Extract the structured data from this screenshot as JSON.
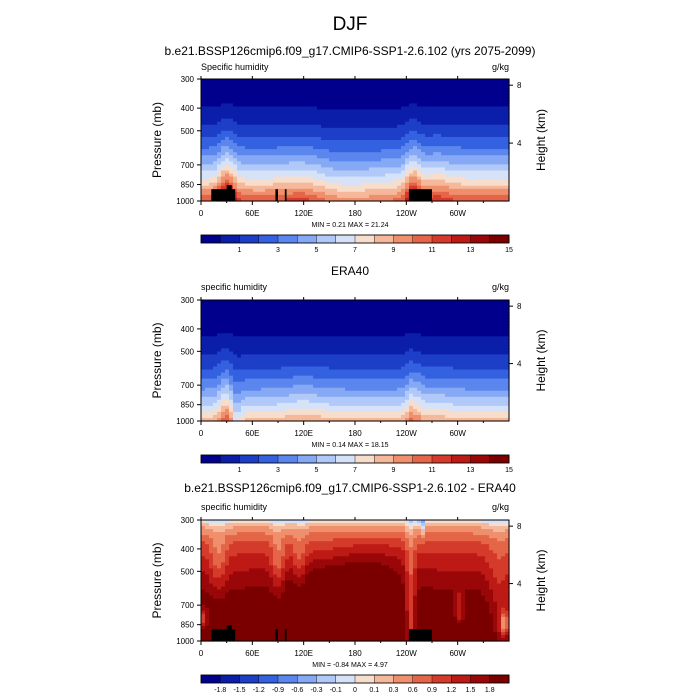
{
  "figure": {
    "title": "DJF"
  },
  "chart_data": [
    {
      "type": "heatmap",
      "title": "b.e21.BSSP126cmip6.f09_g17.CMIP6-SSP1-2.6.102 (yrs 2075-2099)",
      "left_string": "Specific humidity",
      "units": "g/kg",
      "ylabel": "Pressure (mb)",
      "ylabel_right": "Height (km)",
      "x_ticks": [
        "0",
        "60E",
        "120E",
        "180",
        "120W",
        "60W"
      ],
      "x_tick_lon": [
        0,
        60,
        120,
        180,
        240,
        300
      ],
      "xlim": [
        0,
        360
      ],
      "y_ticks": [
        300,
        400,
        500,
        700,
        850,
        1000
      ],
      "ylim": [
        1000,
        300
      ],
      "y_scale": "log",
      "right_ticks": [
        8,
        4
      ],
      "stats": "MIN =   0.21  MAX =  21.24",
      "colorbar_labels": [
        "1",
        "3",
        "5",
        "7",
        "9",
        "11",
        "13",
        "15"
      ],
      "colorbar_colors": [
        "#00008c",
        "#0a1eaa",
        "#1d3fc7",
        "#3461df",
        "#5a86ee",
        "#86a9f5",
        "#b1c9f8",
        "#d6e2f7",
        "#f6ddcc",
        "#f5b89a",
        "#ef8f6b",
        "#e46547",
        "#d53b2a",
        "#bd1a16",
        "#9a0708",
        "#7a0000"
      ],
      "field": "q",
      "terrain": [
        [
          12,
          40,
          890
        ],
        [
          30,
          36,
          855
        ],
        [
          87,
          90,
          890
        ],
        [
          98,
          100,
          890
        ],
        [
          243,
          270,
          890
        ]
      ]
    },
    {
      "type": "heatmap",
      "title": "ERA40",
      "left_string": "specific humidity",
      "units": "g/kg",
      "ylabel": "Pressure (mb)",
      "ylabel_right": "Height (km)",
      "x_ticks": [
        "0",
        "60E",
        "120E",
        "180",
        "120W",
        "60W"
      ],
      "x_tick_lon": [
        0,
        60,
        120,
        180,
        240,
        300
      ],
      "xlim": [
        0,
        360
      ],
      "y_ticks": [
        300,
        400,
        500,
        700,
        850,
        1000
      ],
      "ylim": [
        1000,
        300
      ],
      "y_scale": "log",
      "right_ticks": [
        8,
        4
      ],
      "stats": "MIN =   0.14  MAX =  18.15",
      "colorbar_labels": [
        "1",
        "3",
        "5",
        "7",
        "9",
        "11",
        "13",
        "15"
      ],
      "colorbar_colors": [
        "#00008c",
        "#0a1eaa",
        "#1d3fc7",
        "#3461df",
        "#5a86ee",
        "#86a9f5",
        "#b1c9f8",
        "#d6e2f7",
        "#f6ddcc",
        "#f5b89a",
        "#ef8f6b",
        "#e46547",
        "#d53b2a",
        "#bd1a16",
        "#9a0708",
        "#7a0000"
      ],
      "field": "q_era",
      "terrain": []
    },
    {
      "type": "heatmap",
      "title": "b.e21.BSSP126cmip6.f09_g17.CMIP6-SSP1-2.6.102 - ERA40",
      "left_string": "specific humidity",
      "units": "g/kg",
      "ylabel": "Pressure (mb)",
      "ylabel_right": "Height (km)",
      "x_ticks": [
        "0",
        "60E",
        "120E",
        "180",
        "120W",
        "60W"
      ],
      "x_tick_lon": [
        0,
        60,
        120,
        180,
        240,
        300
      ],
      "xlim": [
        0,
        360
      ],
      "y_ticks": [
        300,
        400,
        500,
        700,
        850,
        1000
      ],
      "ylim": [
        1000,
        300
      ],
      "y_scale": "log",
      "right_ticks": [
        8,
        4
      ],
      "stats": "MIN =  -0.84  MAX =   4.97",
      "colorbar_labels": [
        "-1.8",
        "-1.5",
        "-1.2",
        "-0.9",
        "-0.6",
        "-0.3",
        "-0.1",
        "0",
        "0.1",
        "0.3",
        "0.6",
        "0.9",
        "1.2",
        "1.5",
        "1.8"
      ],
      "colorbar_colors": [
        "#00008c",
        "#0a1eaa",
        "#1d3fc7",
        "#3461df",
        "#5a86ee",
        "#86a9f5",
        "#b1c9f8",
        "#d6e2f7",
        "#f6ddcc",
        "#f5b89a",
        "#ef8f6b",
        "#e46547",
        "#d53b2a",
        "#bd1a16",
        "#9a0708",
        "#7a0000"
      ],
      "field": "diff",
      "terrain": [
        [
          12,
          40,
          890
        ],
        [
          30,
          36,
          855
        ],
        [
          87,
          90,
          890
        ],
        [
          98,
          100,
          890
        ],
        [
          243,
          270,
          890
        ]
      ]
    }
  ]
}
